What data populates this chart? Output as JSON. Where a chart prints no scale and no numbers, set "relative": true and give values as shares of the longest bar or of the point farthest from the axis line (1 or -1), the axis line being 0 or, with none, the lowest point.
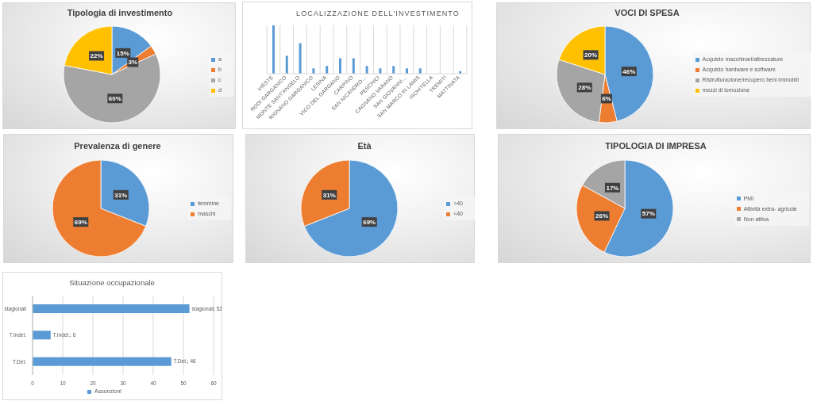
{
  "chart_data": [
    {
      "type": "pie",
      "title": "Tipologia di investimento",
      "categories": [
        "a",
        "b",
        "c",
        "d"
      ],
      "values": [
        15,
        3,
        60,
        22
      ],
      "colors": [
        "#5b9bd5",
        "#ed7d31",
        "#a5a5a5",
        "#ffc000"
      ],
      "value_labels": [
        "15%",
        "3%",
        "60%",
        "22%"
      ],
      "legend": "right"
    },
    {
      "type": "bar",
      "title": "LOCALIZZAZIONE DELL'INVESTIMENTO",
      "categories": [
        "VIESTE",
        "RODI GARGANICO",
        "MONTE SANT'ANGELO",
        "RIGNANO GARGANICO",
        "LESINA",
        "VICO DEL GARGANO",
        "CARPINO",
        "SAN NICANDRO…",
        "PESCHICI",
        "CAGNANO VARANO",
        "SAN GIOVANNI…",
        "SAN MARCO IN LAMIS",
        "ISCHITELLA",
        "TREMITI",
        "MATTINATA"
      ],
      "values": [
        1,
        0.37,
        0.63,
        0.11,
        0.16,
        0.32,
        0.32,
        0.16,
        0.11,
        0.16,
        0.11,
        0.11,
        0,
        0,
        0.05
      ],
      "color": "#5b9bd5",
      "relative": true,
      "grid": "x"
    },
    {
      "type": "pie",
      "title": "VOCI DI SPESA",
      "categories": [
        "Acquisto macchinari/attrezzature",
        "Acquisto hardware e software",
        "Ristrutturazione/recupero beni immobili",
        "mezzi di lomozione"
      ],
      "values": [
        46,
        6,
        28,
        20
      ],
      "colors": [
        "#5b9bd5",
        "#ed7d31",
        "#a5a5a5",
        "#ffc000"
      ],
      "value_labels": [
        "46%",
        "6%",
        "28%",
        "20%"
      ],
      "legend": "right"
    },
    {
      "type": "pie",
      "title": "Prevalenza di genere",
      "categories": [
        "femmine",
        "maschi"
      ],
      "values": [
        31,
        69
      ],
      "colors": [
        "#5b9bd5",
        "#ed7d31"
      ],
      "value_labels": [
        "31%",
        "69%"
      ],
      "legend": "right"
    },
    {
      "type": "pie",
      "title": "Età",
      "categories": [
        ">40",
        "<40"
      ],
      "values": [
        69,
        31
      ],
      "colors": [
        "#5b9bd5",
        "#ed7d31"
      ],
      "value_labels": [
        "69%",
        "31%"
      ],
      "legend": "right"
    },
    {
      "type": "pie",
      "title": "TIPOLOGIA DI IMPRESA",
      "categories": [
        "PMI",
        "Attività extra- agricole",
        "Non attiva"
      ],
      "values": [
        57,
        26,
        17
      ],
      "colors": [
        "#5b9bd5",
        "#ed7d31",
        "#a5a5a5"
      ],
      "value_labels": [
        "57%",
        "26%",
        "17%"
      ],
      "legend": "right"
    },
    {
      "type": "bar",
      "orientation": "horizontal",
      "title": "Situazione occupazionale",
      "categories": [
        "stagionali",
        "T.Indet.",
        "T.Det."
      ],
      "series": [
        {
          "name": "Assunzioni",
          "color": "#5b9bd5",
          "values": [
            52,
            6,
            46
          ],
          "value_labels": [
            "stagionali; 52",
            "T.Indet.; 6",
            "T.Det.; 46"
          ]
        }
      ],
      "xlim": [
        0,
        60
      ],
      "xticks": [
        0,
        10,
        20,
        30,
        40,
        50,
        60
      ],
      "grid": "x",
      "legend": "bottom"
    }
  ]
}
